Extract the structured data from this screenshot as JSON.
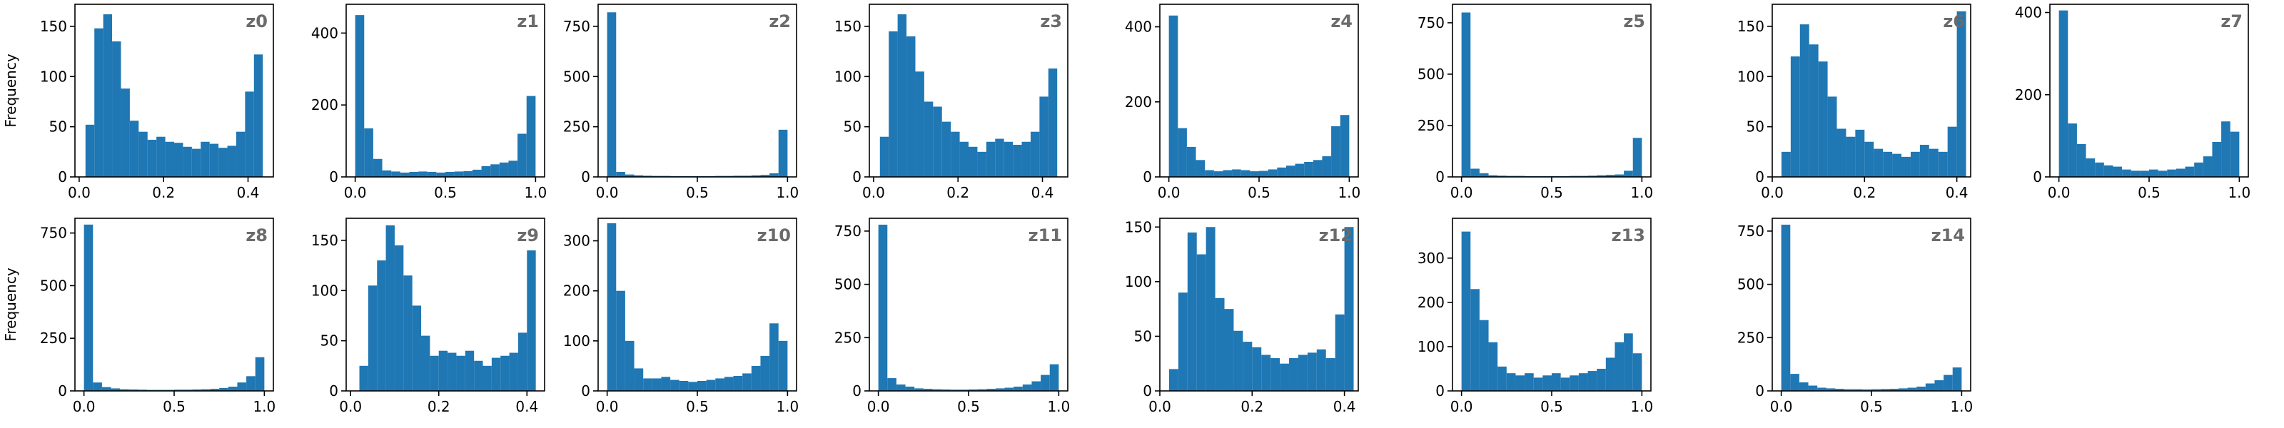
{
  "colors": {
    "bar": "#1f77b4",
    "axis": "#000000",
    "panel_label": "#6b6b6b"
  },
  "y_axis_label": "Frequency",
  "chart_data": [
    {
      "type": "bar",
      "title": "z0",
      "xlabel": "",
      "ylabel": "Frequency",
      "xlim": [
        -0.01,
        0.46
      ],
      "ylim": [
        0,
        172
      ],
      "xticks": [
        0.0,
        0.2,
        0.4
      ],
      "xtick_labels": [
        "0.0",
        "0.2",
        "0.4"
      ],
      "yticks": [
        0,
        50,
        100,
        150
      ],
      "ytick_labels": [
        "0",
        "50",
        "100",
        "150"
      ],
      "bin_edges": [
        0.015,
        0.036,
        0.057,
        0.078,
        0.099,
        0.12,
        0.141,
        0.162,
        0.183,
        0.204,
        0.225,
        0.246,
        0.267,
        0.288,
        0.309,
        0.33,
        0.351,
        0.372,
        0.393,
        0.414,
        0.435
      ],
      "values": [
        52,
        148,
        162,
        135,
        88,
        56,
        45,
        37,
        40,
        35,
        34,
        30,
        28,
        35,
        33,
        29,
        31,
        45,
        85,
        122
      ]
    },
    {
      "type": "bar",
      "title": "z1",
      "xlabel": "",
      "ylabel": "",
      "xlim": [
        -0.05,
        1.05
      ],
      "ylim": [
        0,
        480
      ],
      "xticks": [
        0.0,
        0.5,
        1.0
      ],
      "xtick_labels": [
        "0.0",
        "0.5",
        "1.0"
      ],
      "yticks": [
        0,
        200,
        400
      ],
      "ytick_labels": [
        "0",
        "200",
        "400"
      ],
      "bin_edges": [
        0.0,
        0.05,
        0.1,
        0.15,
        0.2,
        0.25,
        0.3,
        0.35,
        0.4,
        0.45,
        0.5,
        0.55,
        0.6,
        0.65,
        0.7,
        0.75,
        0.8,
        0.85,
        0.9,
        0.95,
        1.0
      ],
      "values": [
        450,
        135,
        50,
        18,
        15,
        12,
        14,
        15,
        14,
        12,
        14,
        15,
        16,
        20,
        30,
        35,
        40,
        45,
        120,
        225
      ]
    },
    {
      "type": "bar",
      "title": "z2",
      "xlabel": "",
      "ylabel": "",
      "xlim": [
        -0.05,
        1.05
      ],
      "ylim": [
        0,
        860
      ],
      "xticks": [
        0.0,
        0.5,
        1.0
      ],
      "xtick_labels": [
        "0.0",
        "0.5",
        "1.0"
      ],
      "yticks": [
        0,
        250,
        500,
        750
      ],
      "ytick_labels": [
        "0",
        "250",
        "500",
        "750"
      ],
      "bin_edges": [
        0.0,
        0.05,
        0.1,
        0.15,
        0.2,
        0.25,
        0.3,
        0.35,
        0.4,
        0.45,
        0.5,
        0.55,
        0.6,
        0.65,
        0.7,
        0.75,
        0.8,
        0.85,
        0.9,
        0.95,
        1.0
      ],
      "values": [
        820,
        25,
        12,
        8,
        6,
        5,
        5,
        4,
        4,
        4,
        4,
        4,
        5,
        5,
        6,
        6,
        8,
        10,
        18,
        235
      ]
    },
    {
      "type": "bar",
      "title": "z3",
      "xlabel": "",
      "ylabel": "",
      "xlim": [
        -0.01,
        0.46
      ],
      "ylim": [
        0,
        172
      ],
      "xticks": [
        0.0,
        0.2,
        0.4
      ],
      "xtick_labels": [
        "0.0",
        "0.2",
        "0.4"
      ],
      "yticks": [
        0,
        50,
        100,
        150
      ],
      "ytick_labels": [
        "0",
        "50",
        "100",
        "150"
      ],
      "bin_edges": [
        0.015,
        0.036,
        0.057,
        0.078,
        0.099,
        0.12,
        0.141,
        0.162,
        0.183,
        0.204,
        0.225,
        0.246,
        0.267,
        0.288,
        0.309,
        0.33,
        0.351,
        0.372,
        0.393,
        0.414,
        0.435
      ],
      "values": [
        40,
        145,
        162,
        140,
        105,
        75,
        70,
        55,
        45,
        35,
        30,
        25,
        35,
        38,
        35,
        32,
        35,
        45,
        80,
        108
      ]
    },
    {
      "type": "bar",
      "title": "z4",
      "xlabel": "",
      "ylabel": "",
      "xlim": [
        -0.05,
        1.05
      ],
      "ylim": [
        0,
        460
      ],
      "xticks": [
        0.0,
        0.5,
        1.0
      ],
      "xtick_labels": [
        "0.0",
        "0.5",
        "1.0"
      ],
      "yticks": [
        0,
        200,
        400
      ],
      "ytick_labels": [
        "0",
        "200",
        "400"
      ],
      "bin_edges": [
        0.0,
        0.05,
        0.1,
        0.15,
        0.2,
        0.25,
        0.3,
        0.35,
        0.4,
        0.45,
        0.5,
        0.55,
        0.6,
        0.65,
        0.7,
        0.75,
        0.8,
        0.85,
        0.9,
        0.95,
        1.0
      ],
      "values": [
        430,
        130,
        80,
        45,
        18,
        15,
        18,
        20,
        18,
        15,
        16,
        20,
        25,
        30,
        35,
        40,
        45,
        55,
        135,
        165
      ]
    },
    {
      "type": "bar",
      "title": "z5",
      "xlabel": "",
      "ylabel": "",
      "xlim": [
        -0.05,
        1.05
      ],
      "ylim": [
        0,
        840
      ],
      "xticks": [
        0.0,
        0.5,
        1.0
      ],
      "xtick_labels": [
        "0.0",
        "0.5",
        "1.0"
      ],
      "yticks": [
        0,
        250,
        500,
        750
      ],
      "ytick_labels": [
        "0",
        "250",
        "500",
        "750"
      ],
      "bin_edges": [
        0.0,
        0.05,
        0.1,
        0.15,
        0.2,
        0.25,
        0.3,
        0.35,
        0.4,
        0.45,
        0.5,
        0.55,
        0.6,
        0.65,
        0.7,
        0.75,
        0.8,
        0.85,
        0.9,
        0.95,
        1.0
      ],
      "values": [
        800,
        40,
        18,
        8,
        6,
        5,
        5,
        4,
        4,
        4,
        4,
        4,
        5,
        5,
        6,
        8,
        10,
        12,
        30,
        190
      ]
    },
    {
      "type": "bar",
      "title": "z6",
      "xlabel": "",
      "ylabel": "",
      "xlim": [
        0.0,
        0.43
      ],
      "ylim": [
        0,
        172
      ],
      "xticks": [
        0.0,
        0.2,
        0.4
      ],
      "xtick_labels": [
        "0.0",
        "0.2",
        "0.4"
      ],
      "yticks": [
        0,
        50,
        100,
        150
      ],
      "ytick_labels": [
        "0",
        "50",
        "100",
        "150"
      ],
      "bin_edges": [
        0.02,
        0.04,
        0.06,
        0.08,
        0.1,
        0.12,
        0.14,
        0.16,
        0.18,
        0.2,
        0.22,
        0.24,
        0.26,
        0.28,
        0.3,
        0.32,
        0.34,
        0.36,
        0.38,
        0.4,
        0.42
      ],
      "values": [
        25,
        120,
        152,
        132,
        115,
        80,
        48,
        40,
        47,
        35,
        28,
        25,
        23,
        20,
        25,
        32,
        28,
        25,
        50,
        165
      ]
    },
    {
      "type": "bar",
      "title": "z7",
      "xlabel": "",
      "ylabel": "",
      "xlim": [
        -0.05,
        1.05
      ],
      "ylim": [
        0,
        420
      ],
      "xticks": [
        0.0,
        0.5,
        1.0
      ],
      "xtick_labels": [
        "0.0",
        "0.5",
        "1.0"
      ],
      "yticks": [
        0,
        200,
        400
      ],
      "ytick_labels": [
        "0",
        "200",
        "400"
      ],
      "bin_edges": [
        0.0,
        0.05,
        0.1,
        0.15,
        0.2,
        0.25,
        0.3,
        0.35,
        0.4,
        0.45,
        0.5,
        0.55,
        0.6,
        0.65,
        0.7,
        0.75,
        0.8,
        0.85,
        0.9,
        0.95,
        1.0
      ],
      "values": [
        405,
        130,
        80,
        45,
        35,
        28,
        25,
        18,
        15,
        15,
        18,
        15,
        18,
        20,
        25,
        35,
        50,
        85,
        135,
        110
      ]
    },
    {
      "type": "bar",
      "title": "z8",
      "xlabel": "",
      "ylabel": "Frequency",
      "xlim": [
        -0.05,
        1.05
      ],
      "ylim": [
        0,
        820
      ],
      "xticks": [
        0.0,
        0.5,
        1.0
      ],
      "xtick_labels": [
        "0.0",
        "0.5",
        "1.0"
      ],
      "yticks": [
        0,
        250,
        500,
        750
      ],
      "ytick_labels": [
        "0",
        "250",
        "500",
        "750"
      ],
      "bin_edges": [
        0.0,
        0.05,
        0.1,
        0.15,
        0.2,
        0.25,
        0.3,
        0.35,
        0.4,
        0.45,
        0.5,
        0.55,
        0.6,
        0.65,
        0.7,
        0.75,
        0.8,
        0.85,
        0.9,
        0.95,
        1.0
      ],
      "values": [
        790,
        40,
        18,
        12,
        8,
        7,
        6,
        5,
        5,
        5,
        6,
        6,
        7,
        8,
        10,
        14,
        20,
        40,
        70,
        160
      ]
    },
    {
      "type": "bar",
      "title": "z9",
      "xlabel": "",
      "ylabel": "",
      "xlim": [
        -0.01,
        0.44
      ],
      "ylim": [
        0,
        172
      ],
      "xticks": [
        0.0,
        0.2,
        0.4
      ],
      "xtick_labels": [
        "0.0",
        "0.2",
        "0.4"
      ],
      "yticks": [
        0,
        50,
        100,
        150
      ],
      "ytick_labels": [
        "0",
        "50",
        "100",
        "150"
      ],
      "bin_edges": [
        0.02,
        0.04,
        0.06,
        0.08,
        0.1,
        0.12,
        0.14,
        0.16,
        0.18,
        0.2,
        0.22,
        0.24,
        0.26,
        0.28,
        0.3,
        0.32,
        0.34,
        0.36,
        0.38,
        0.4,
        0.42
      ],
      "values": [
        25,
        105,
        130,
        165,
        145,
        115,
        85,
        55,
        35,
        40,
        38,
        35,
        40,
        30,
        25,
        33,
        35,
        38,
        58,
        140
      ]
    },
    {
      "type": "bar",
      "title": "z10",
      "xlabel": "",
      "ylabel": "",
      "xlim": [
        -0.05,
        1.05
      ],
      "ylim": [
        0,
        345
      ],
      "xticks": [
        0.0,
        0.5,
        1.0
      ],
      "xtick_labels": [
        "0.0",
        "0.5",
        "1.0"
      ],
      "yticks": [
        0,
        100,
        200,
        300
      ],
      "ytick_labels": [
        "0",
        "100",
        "200",
        "300"
      ],
      "bin_edges": [
        0.0,
        0.05,
        0.1,
        0.15,
        0.2,
        0.25,
        0.3,
        0.35,
        0.4,
        0.45,
        0.5,
        0.55,
        0.6,
        0.65,
        0.7,
        0.75,
        0.8,
        0.85,
        0.9,
        0.95,
        1.0
      ],
      "values": [
        335,
        200,
        100,
        45,
        25,
        25,
        28,
        22,
        20,
        18,
        20,
        22,
        25,
        28,
        30,
        35,
        50,
        70,
        135,
        100
      ]
    },
    {
      "type": "bar",
      "title": "z11",
      "xlabel": "",
      "ylabel": "",
      "xlim": [
        -0.05,
        1.05
      ],
      "ylim": [
        0,
        810
      ],
      "xticks": [
        0.0,
        0.5,
        1.0
      ],
      "xtick_labels": [
        "0.0",
        "0.5",
        "1.0"
      ],
      "yticks": [
        0,
        250,
        500,
        750
      ],
      "ytick_labels": [
        "0",
        "250",
        "500",
        "750"
      ],
      "bin_edges": [
        0.0,
        0.05,
        0.1,
        0.15,
        0.2,
        0.25,
        0.3,
        0.35,
        0.4,
        0.45,
        0.5,
        0.55,
        0.6,
        0.65,
        0.7,
        0.75,
        0.8,
        0.85,
        0.9,
        0.95,
        1.0
      ],
      "values": [
        780,
        60,
        30,
        20,
        12,
        10,
        8,
        7,
        6,
        6,
        7,
        8,
        10,
        12,
        15,
        20,
        30,
        45,
        75,
        125
      ]
    },
    {
      "type": "bar",
      "title": "z12",
      "xlabel": "",
      "ylabel": "",
      "xlim": [
        0.0,
        0.43
      ],
      "ylim": [
        0,
        158
      ],
      "xticks": [
        0.0,
        0.2,
        0.4
      ],
      "xtick_labels": [
        "0.0",
        "0.2",
        "0.4"
      ],
      "yticks": [
        0,
        50,
        100,
        150
      ],
      "ytick_labels": [
        "0",
        "50",
        "100",
        "150"
      ],
      "bin_edges": [
        0.02,
        0.04,
        0.06,
        0.08,
        0.1,
        0.12,
        0.14,
        0.16,
        0.18,
        0.2,
        0.22,
        0.24,
        0.26,
        0.28,
        0.3,
        0.32,
        0.34,
        0.36,
        0.38,
        0.4,
        0.42
      ],
      "values": [
        20,
        90,
        145,
        125,
        150,
        85,
        75,
        55,
        45,
        40,
        33,
        30,
        25,
        30,
        33,
        35,
        38,
        30,
        70,
        150
      ]
    },
    {
      "type": "bar",
      "title": "z13",
      "xlabel": "",
      "ylabel": "",
      "xlim": [
        -0.05,
        1.05
      ],
      "ylim": [
        0,
        390
      ],
      "xticks": [
        0.0,
        0.5,
        1.0
      ],
      "xtick_labels": [
        "0.0",
        "0.5",
        "1.0"
      ],
      "yticks": [
        0,
        100,
        200,
        300
      ],
      "ytick_labels": [
        "0",
        "100",
        "200",
        "300"
      ],
      "bin_edges": [
        0.0,
        0.05,
        0.1,
        0.15,
        0.2,
        0.25,
        0.3,
        0.35,
        0.4,
        0.45,
        0.5,
        0.55,
        0.6,
        0.65,
        0.7,
        0.75,
        0.8,
        0.85,
        0.9,
        0.95,
        1.0
      ],
      "values": [
        360,
        230,
        160,
        110,
        55,
        40,
        35,
        40,
        30,
        35,
        40,
        30,
        35,
        40,
        45,
        50,
        75,
        110,
        130,
        85
      ]
    },
    {
      "type": "bar",
      "title": "z14",
      "xlabel": "",
      "ylabel": "",
      "xlim": [
        -0.05,
        1.05
      ],
      "ylim": [
        0,
        810
      ],
      "xticks": [
        0.0,
        0.5,
        1.0
      ],
      "xtick_labels": [
        "0.0",
        "0.5",
        "1.0"
      ],
      "yticks": [
        0,
        250,
        500,
        750
      ],
      "ytick_labels": [
        "0",
        "250",
        "500",
        "750"
      ],
      "bin_edges": [
        0.0,
        0.05,
        0.1,
        0.15,
        0.2,
        0.25,
        0.3,
        0.35,
        0.4,
        0.45,
        0.5,
        0.55,
        0.6,
        0.65,
        0.7,
        0.75,
        0.8,
        0.85,
        0.9,
        0.95,
        1.0
      ],
      "values": [
        780,
        80,
        40,
        25,
        15,
        12,
        10,
        8,
        8,
        7,
        8,
        9,
        10,
        12,
        15,
        20,
        35,
        50,
        75,
        110
      ]
    }
  ]
}
